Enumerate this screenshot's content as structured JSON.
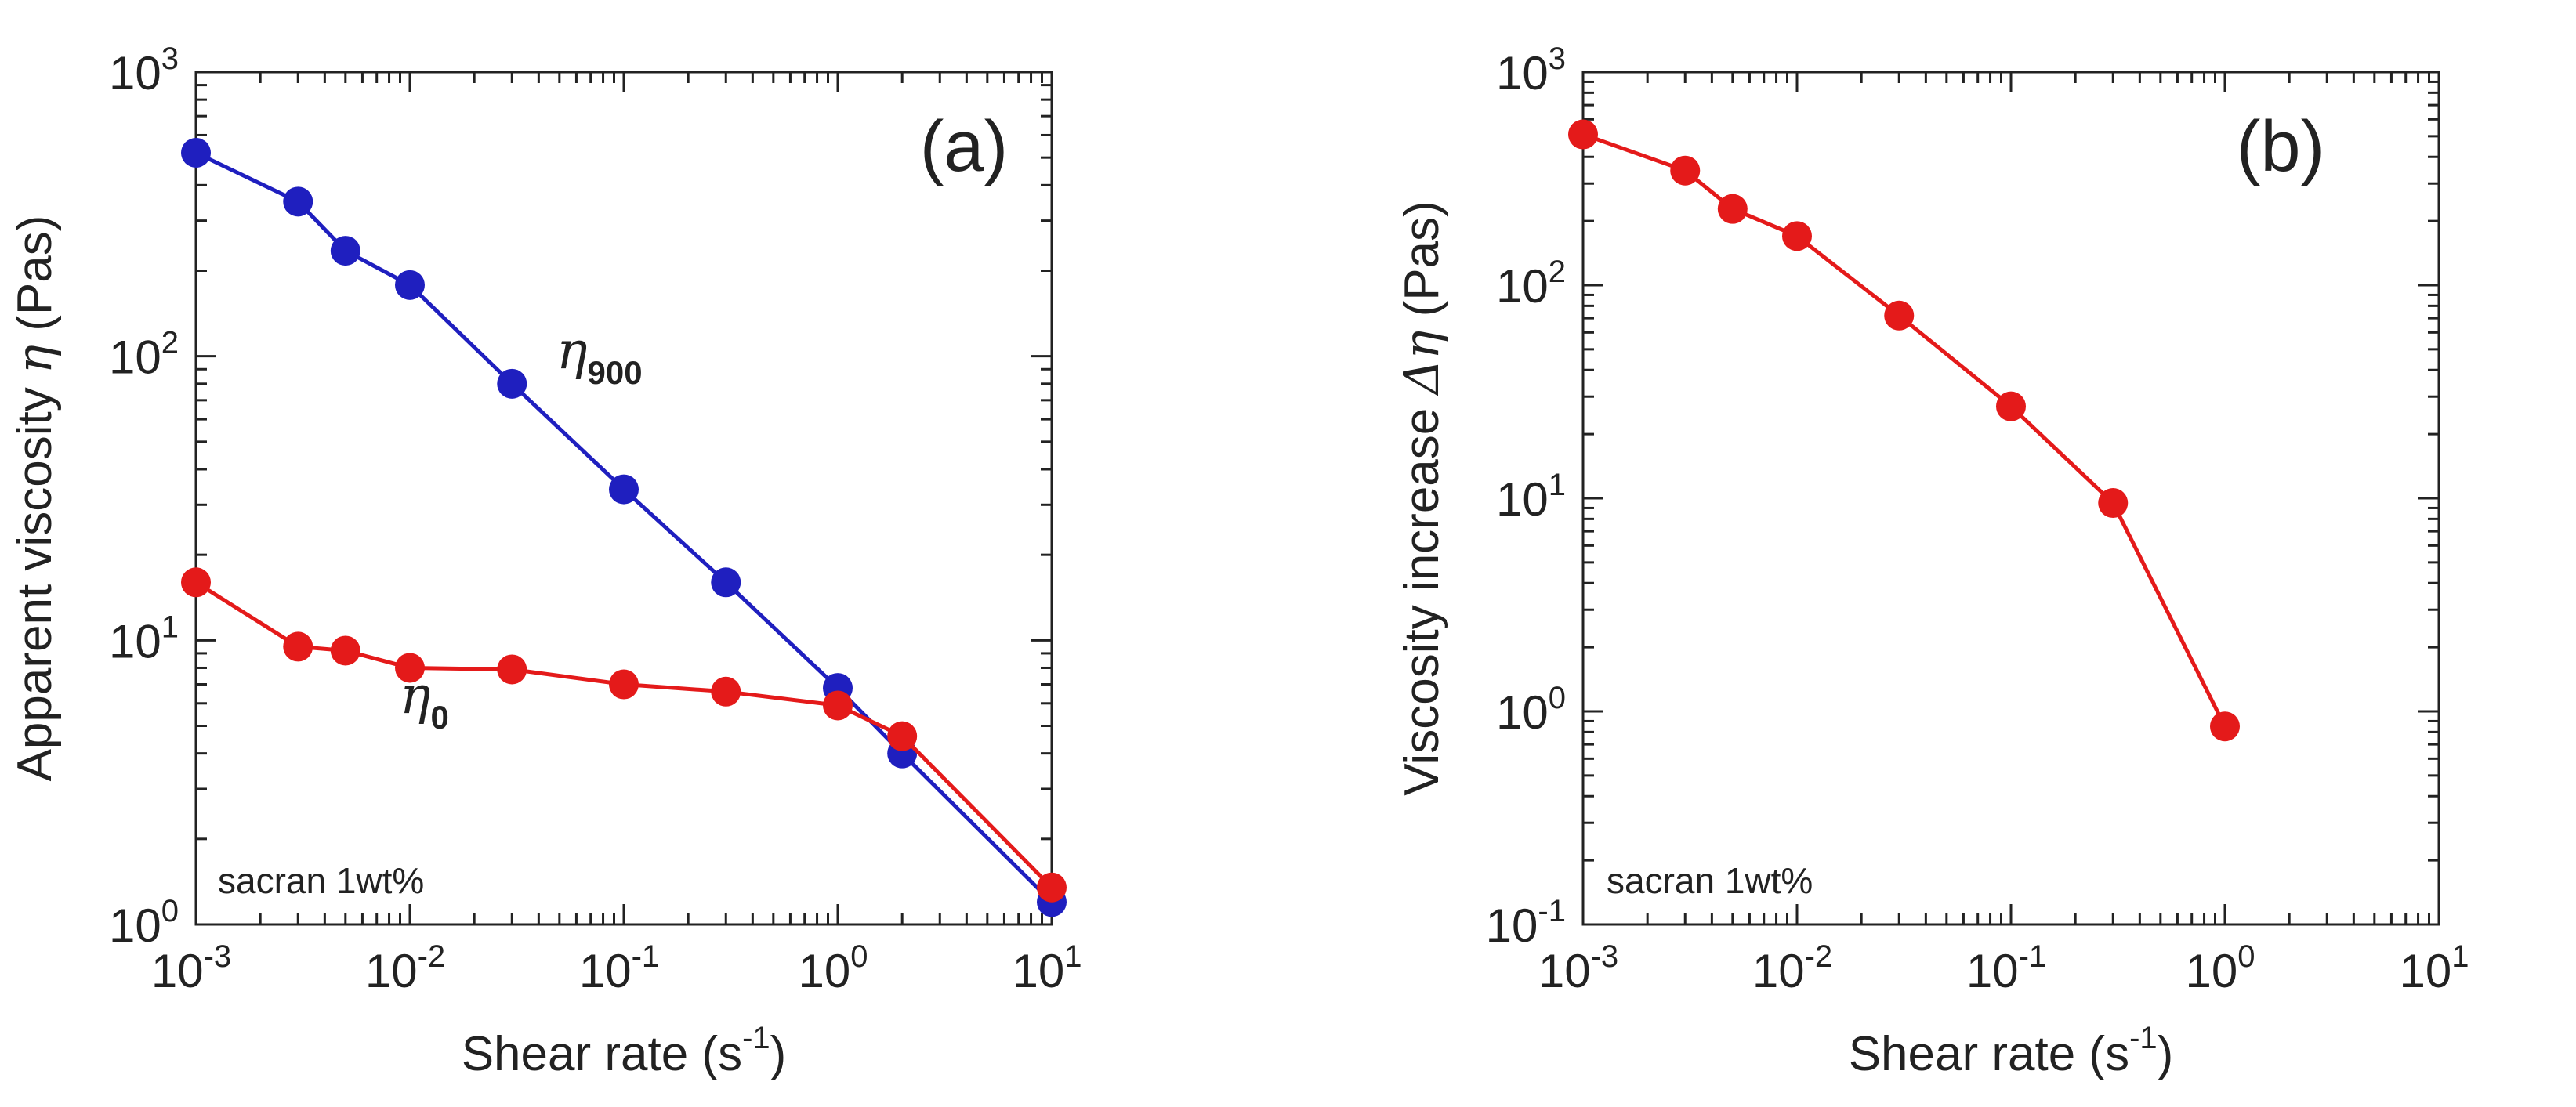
{
  "chart_data": [
    {
      "type": "line",
      "panel_label": "(a)",
      "xscale": "log",
      "yscale": "log",
      "xlim": [
        0.001,
        10
      ],
      "ylim": [
        1,
        1000
      ],
      "xlabel": "Shear rate (s",
      "xlabel_exp": "-1",
      "xlabel_end": ")",
      "ylabel": "Apparent viscosity ",
      "ylabel_symbol": "η",
      "ylabel_unit": " (Pas)",
      "x_tick_labels": [
        {
          "base": "10",
          "exp": "-3",
          "value": 0.001
        },
        {
          "base": "10",
          "exp": "-2",
          "value": 0.01
        },
        {
          "base": "10",
          "exp": "-1",
          "value": 0.1
        },
        {
          "base": "10",
          "exp": "0",
          "value": 1
        },
        {
          "base": "10",
          "exp": "1",
          "value": 10
        }
      ],
      "y_tick_labels": [
        {
          "base": "10",
          "exp": "0",
          "value": 1
        },
        {
          "base": "10",
          "exp": "1",
          "value": 10
        },
        {
          "base": "10",
          "exp": "2",
          "value": 100
        },
        {
          "base": "10",
          "exp": "3",
          "value": 1000
        }
      ],
      "annotation": "sacran 1wt%",
      "series": [
        {
          "name": "η900",
          "label_symbol": "η",
          "label_sub": "900",
          "color": "#1f1fbf",
          "x": [
            0.001,
            0.003,
            0.005,
            0.01,
            0.03,
            0.1,
            0.3,
            1,
            2,
            10
          ],
          "y": [
            520,
            350,
            235,
            178,
            80,
            34,
            16,
            6.8,
            4.0,
            1.2
          ]
        },
        {
          "name": "η0",
          "label_symbol": "η",
          "label_sub": "0",
          "color": "#e41a1a",
          "x": [
            0.001,
            0.003,
            0.005,
            0.01,
            0.03,
            0.1,
            0.3,
            1,
            2,
            10
          ],
          "y": [
            16,
            9.5,
            9.2,
            8.0,
            7.9,
            7.0,
            6.6,
            5.9,
            4.6,
            1.35
          ]
        }
      ]
    },
    {
      "type": "line",
      "panel_label": "(b)",
      "xscale": "log",
      "yscale": "log",
      "xlim": [
        0.001,
        10
      ],
      "ylim": [
        0.1,
        1000
      ],
      "xlabel": "Shear rate (s",
      "xlabel_exp": "-1",
      "xlabel_end": ")",
      "ylabel": "Viscosity increase ",
      "ylabel_symbol": "Δη",
      "ylabel_unit": " (Pas)",
      "x_tick_labels": [
        {
          "base": "10",
          "exp": "-3",
          "value": 0.001
        },
        {
          "base": "10",
          "exp": "-2",
          "value": 0.01
        },
        {
          "base": "10",
          "exp": "-1",
          "value": 0.1
        },
        {
          "base": "10",
          "exp": "0",
          "value": 1
        },
        {
          "base": "10",
          "exp": "1",
          "value": 10
        }
      ],
      "y_tick_labels": [
        {
          "base": "10",
          "exp": "-1",
          "value": 0.1
        },
        {
          "base": "10",
          "exp": "0",
          "value": 1
        },
        {
          "base": "10",
          "exp": "1",
          "value": 10
        },
        {
          "base": "10",
          "exp": "2",
          "value": 100
        },
        {
          "base": "10",
          "exp": "3",
          "value": 1000
        }
      ],
      "annotation": "sacran 1wt%",
      "series": [
        {
          "name": "Δη",
          "color": "#e41a1a",
          "x": [
            0.001,
            0.003,
            0.005,
            0.01,
            0.03,
            0.1,
            0.3,
            1
          ],
          "y": [
            510,
            345,
            228,
            170,
            72,
            27,
            9.5,
            0.85
          ]
        }
      ]
    }
  ]
}
